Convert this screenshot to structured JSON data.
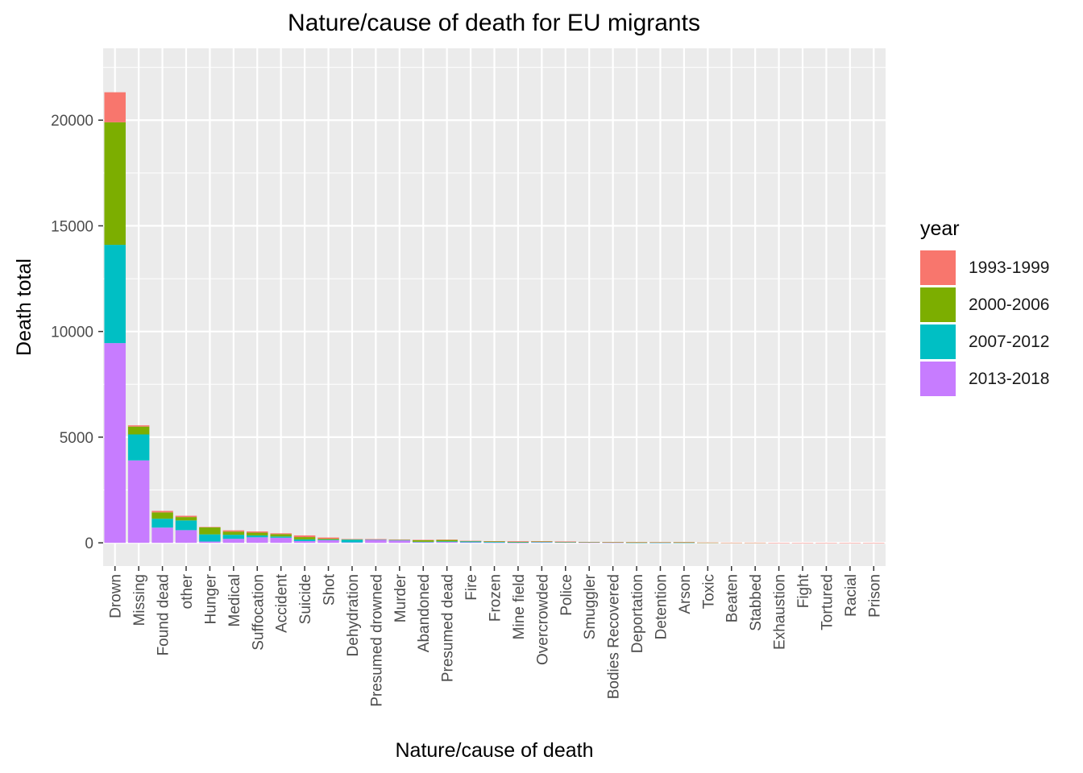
{
  "chart_data": {
    "type": "bar",
    "stacked": true,
    "title": "Nature/cause of death for EU migrants",
    "xlabel": "Nature/cause of death",
    "ylabel": "Death total",
    "ylim": [
      -1100,
      23400
    ],
    "yticks": [
      0,
      5000,
      10000,
      15000,
      20000
    ],
    "grid": true,
    "legend_title": "year",
    "legend_position": "right",
    "categories": [
      "Drown",
      "Missing",
      "Found dead",
      "other",
      "Hunger",
      "Medical",
      "Suffocation",
      "Accident",
      "Suicide",
      "Shot",
      "Dehydration",
      "Presumed drowned",
      "Murder",
      "Abandoned",
      "Presumed dead",
      "Fire",
      "Frozen",
      "Mine field",
      "Overcrowded",
      "Police",
      "Smuggler",
      "Bodies Recovered",
      "Deportation",
      "Detention",
      "Arson",
      "Toxic",
      "Beaten",
      "Stabbed",
      "Exhaustion",
      "Fight",
      "Tortured",
      "Racial",
      "Prison"
    ],
    "series": [
      {
        "name": "2013-2018",
        "color": "#C77CFF",
        "values": [
          9450,
          3900,
          720,
          600,
          60,
          190,
          260,
          240,
          80,
          120,
          20,
          150,
          110,
          30,
          40,
          25,
          10,
          5,
          20,
          25,
          15,
          10,
          5,
          5,
          5,
          0,
          0,
          0,
          0,
          0,
          0,
          0,
          0
        ]
      },
      {
        "name": "2007-2012",
        "color": "#00BFC4",
        "values": [
          4650,
          1230,
          420,
          460,
          340,
          190,
          90,
          60,
          80,
          30,
          130,
          10,
          20,
          20,
          30,
          40,
          30,
          20,
          20,
          10,
          10,
          10,
          5,
          5,
          5,
          5,
          0,
          0,
          0,
          0,
          0,
          0,
          0
        ]
      },
      {
        "name": "2000-2006",
        "color": "#7CAE00",
        "values": [
          5800,
          370,
          300,
          160,
          330,
          150,
          130,
          110,
          110,
          40,
          20,
          10,
          20,
          80,
          70,
          20,
          30,
          20,
          20,
          10,
          10,
          10,
          10,
          15,
          10,
          5,
          5,
          5,
          0,
          0,
          0,
          0,
          0
        ]
      },
      {
        "name": "1993-1999",
        "color": "#F8766D",
        "values": [
          1420,
          60,
          70,
          60,
          20,
          60,
          60,
          40,
          80,
          60,
          10,
          5,
          10,
          10,
          10,
          10,
          10,
          30,
          20,
          20,
          10,
          10,
          20,
          10,
          20,
          5,
          5,
          5,
          5,
          5,
          5,
          5,
          5
        ]
      }
    ]
  }
}
